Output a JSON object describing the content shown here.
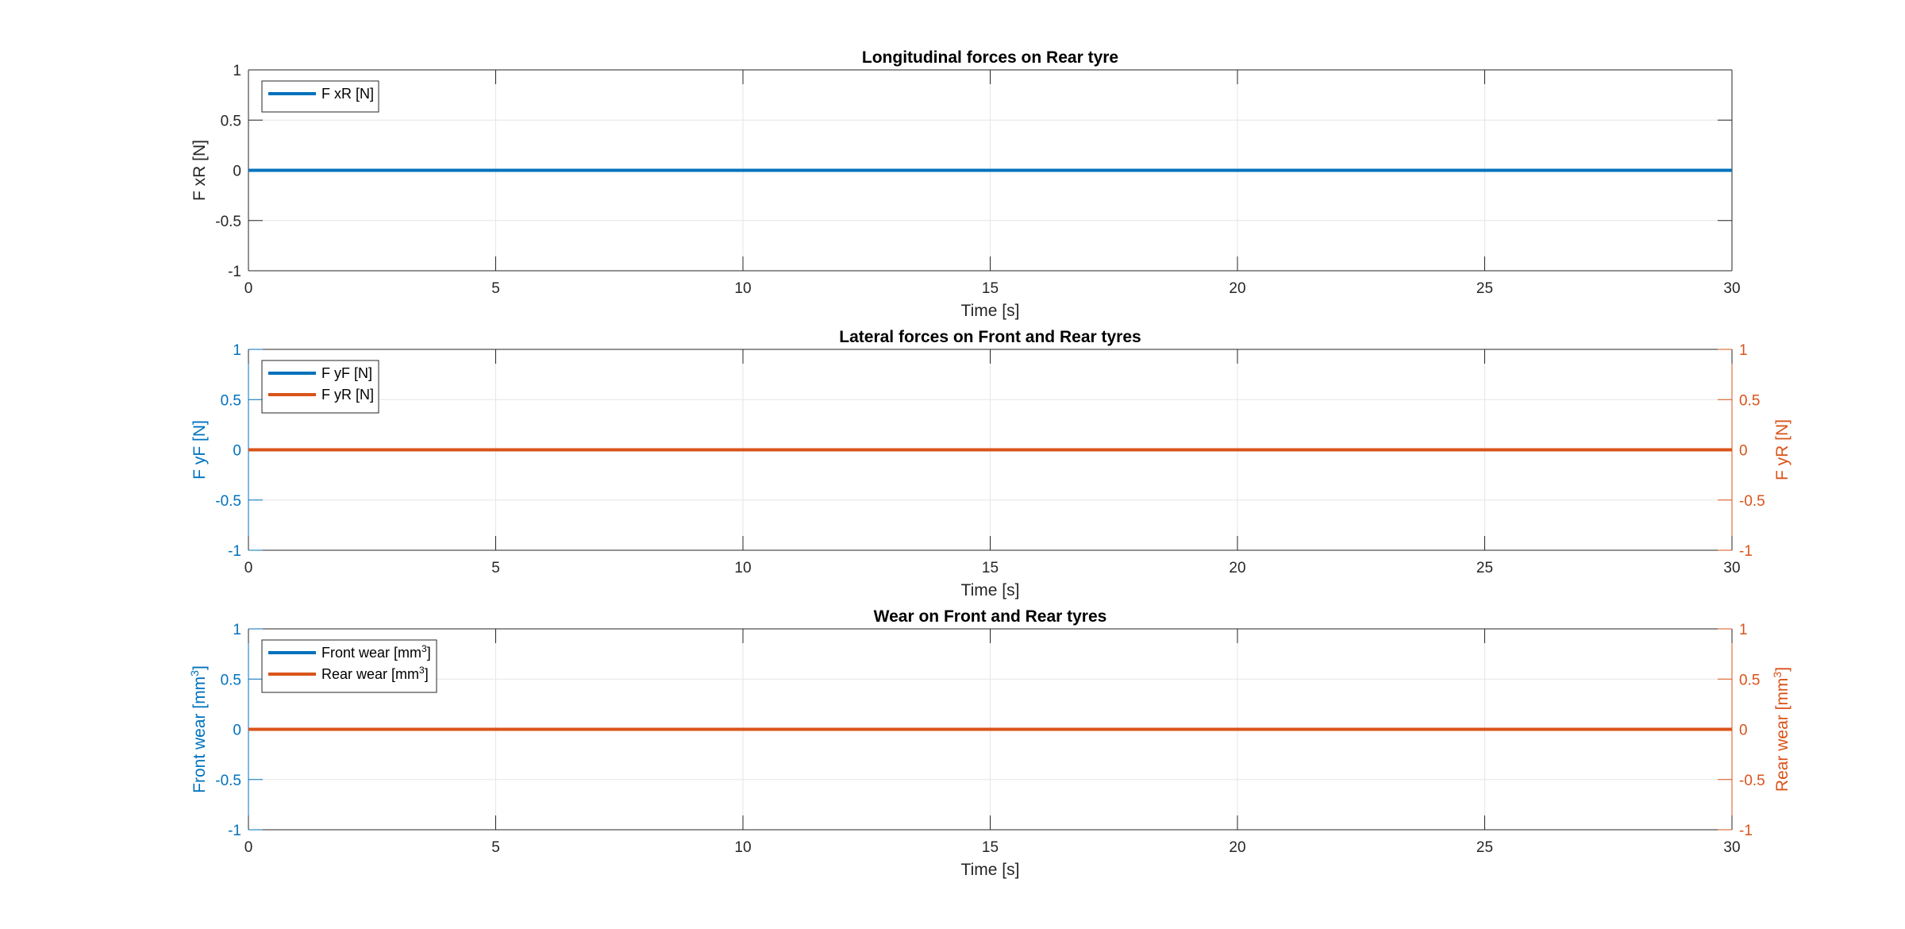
{
  "colors": {
    "blue": "#0072BD",
    "orange": "#D95319",
    "axis": "#262626",
    "grid": "#e6e6e6",
    "left_axis_blue": "#0072BD",
    "right_axis_orange": "#D95319"
  },
  "chart_data": [
    {
      "type": "line",
      "title": "Longitudinal forces on Rear tyre",
      "xlabel": "Time [s]",
      "ylabel": "F xR [N]",
      "xlim": [
        0,
        30
      ],
      "ylim": [
        -1,
        1
      ],
      "xticks": [
        0,
        5,
        10,
        15,
        20,
        25,
        30
      ],
      "yticks": [
        -1,
        -0.5,
        0,
        0.5,
        1
      ],
      "xtick_labels": [
        "0",
        "5",
        "10",
        "15",
        "20",
        "25",
        "30"
      ],
      "ytick_labels": [
        "-1",
        "-0.5",
        "0",
        "0.5",
        "1"
      ],
      "grid": true,
      "legend": "top-left",
      "series": [
        {
          "name": "F xR [N]",
          "axis": "left",
          "color": "#0072BD",
          "x": [
            0,
            30
          ],
          "y": [
            0,
            0
          ]
        }
      ]
    },
    {
      "type": "line",
      "title": "Lateral forces on Front and Rear tyres",
      "xlabel": "Time [s]",
      "ylabel": "F yF [N]",
      "ylabel_right": "F yR [N]",
      "xlim": [
        0,
        30
      ],
      "ylim": [
        -1,
        1
      ],
      "ylim_right": [
        -1,
        1
      ],
      "xticks": [
        0,
        5,
        10,
        15,
        20,
        25,
        30
      ],
      "yticks": [
        -1,
        -0.5,
        0,
        0.5,
        1
      ],
      "xtick_labels": [
        "0",
        "5",
        "10",
        "15",
        "20",
        "25",
        "30"
      ],
      "ytick_labels": [
        "-1",
        "-0.5",
        "0",
        "0.5",
        "1"
      ],
      "ytick_labels_right": [
        "-1",
        "-0.5",
        "0",
        "0.5",
        "1"
      ],
      "grid": true,
      "legend": "top-left",
      "series": [
        {
          "name": "F yF [N]",
          "axis": "left",
          "color": "#0072BD",
          "x": [
            0,
            30
          ],
          "y": [
            0,
            0
          ]
        },
        {
          "name": "F yR [N]",
          "axis": "right",
          "color": "#D95319",
          "x": [
            0,
            30
          ],
          "y": [
            0,
            0
          ]
        }
      ]
    },
    {
      "type": "line",
      "title": "Wear on Front and Rear tyres",
      "xlabel": "Time [s]",
      "ylabel": "Front wear [mm³]",
      "ylabel_right": "Rear wear [mm³]",
      "xlim": [
        0,
        30
      ],
      "ylim": [
        -1,
        1
      ],
      "ylim_right": [
        -1,
        1
      ],
      "xticks": [
        0,
        5,
        10,
        15,
        20,
        25,
        30
      ],
      "yticks": [
        -1,
        -0.5,
        0,
        0.5,
        1
      ],
      "xtick_labels": [
        "0",
        "5",
        "10",
        "15",
        "20",
        "25",
        "30"
      ],
      "ytick_labels": [
        "-1",
        "-0.5",
        "0",
        "0.5",
        "1"
      ],
      "ytick_labels_right": [
        "-1",
        "-0.5",
        "0",
        "0.5",
        "1"
      ],
      "grid": true,
      "legend": "top-left",
      "series": [
        {
          "name": "Front wear [mm³]",
          "axis": "left",
          "color": "#0072BD",
          "x": [
            0,
            30
          ],
          "y": [
            0,
            0
          ]
        },
        {
          "name": "Rear wear [mm³]",
          "axis": "right",
          "color": "#D95319",
          "x": [
            0,
            30
          ],
          "y": [
            0,
            0
          ]
        }
      ]
    }
  ]
}
